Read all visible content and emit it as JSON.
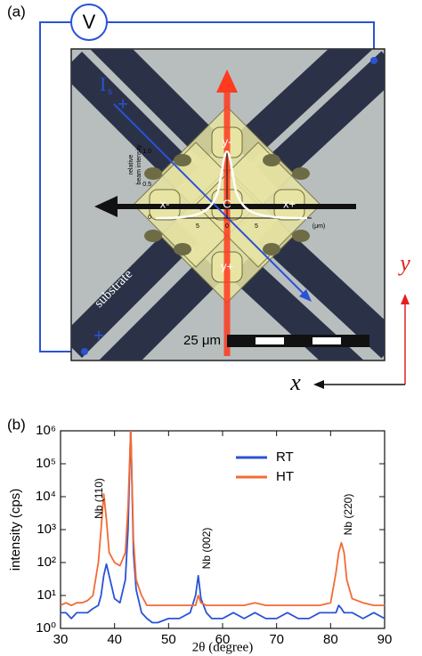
{
  "panel_a": {
    "label": "(a)",
    "voltmeter": "V",
    "current": "I",
    "current_sub": "s",
    "plus_top": "+",
    "plus_bottom": "+",
    "substrate": "substrate",
    "scale_bar": "25 μm",
    "axis_y": "y",
    "axis_x": "x",
    "pads": [
      "y-",
      "x-",
      "C",
      "x+",
      "y+"
    ],
    "inset": {
      "ylabel": [
        "relative",
        "beam intensity"
      ],
      "yticks": [
        "1.0",
        "0.5",
        "0"
      ],
      "xticks": [
        "5",
        "0",
        "5"
      ],
      "xunit": "(μm)"
    }
  },
  "panel_b": {
    "label": "(b)"
  },
  "chart_data": {
    "type": "line",
    "xlabel": "2θ (degree)",
    "ylabel": "intensity (cps)",
    "ylog": true,
    "x": [
      30,
      31,
      32,
      33,
      34,
      35,
      36,
      37,
      37.5,
      38,
      38.5,
      39,
      40,
      41,
      42,
      42.5,
      43,
      43.5,
      44,
      45,
      46,
      47,
      48,
      50,
      52,
      54,
      55,
      55.5,
      56,
      57,
      58,
      60,
      62,
      64,
      66,
      68,
      70,
      72,
      74,
      76,
      78,
      80,
      81,
      81.5,
      82,
      82.5,
      83,
      84,
      86,
      88,
      90
    ],
    "series": [
      {
        "name": "RT",
        "color": "#2a52d6",
        "values": [
          3,
          3,
          2,
          3,
          3,
          3,
          4,
          5,
          10,
          40,
          90,
          40,
          8,
          6,
          30,
          1000,
          1300000,
          200,
          15,
          3,
          2,
          1.5,
          1.5,
          2,
          2,
          3,
          10,
          40,
          8,
          3,
          2,
          2,
          3,
          2,
          3,
          2,
          2,
          3,
          2,
          2,
          3,
          3,
          3,
          5,
          4,
          3,
          3,
          3,
          2,
          3,
          2
        ]
      },
      {
        "name": "HT",
        "color": "#f26b35",
        "values": [
          5,
          6,
          5,
          6,
          6,
          7,
          10,
          100,
          1000,
          12000,
          2000,
          200,
          100,
          80,
          200,
          5000,
          1200000,
          500,
          30,
          10,
          5,
          5,
          5,
          5,
          5,
          5,
          5,
          10,
          6,
          5,
          5,
          5,
          5,
          5,
          6,
          5,
          5,
          5,
          5,
          5,
          5,
          6,
          50,
          200,
          400,
          200,
          30,
          8,
          6,
          5,
          5
        ]
      }
    ],
    "annotations": [
      "Nb (110)",
      "Nb (002)",
      "Nb (220)"
    ],
    "xlim": [
      30,
      90
    ],
    "xticks": [
      30,
      40,
      50,
      60,
      70,
      80,
      90
    ],
    "ylim": [
      1,
      1000000
    ],
    "yticks": [
      {
        "value": 1,
        "label": "10⁰"
      },
      {
        "value": 10,
        "label": "10¹"
      },
      {
        "value": 100,
        "label": "10²"
      },
      {
        "value": 1000,
        "label": "10³"
      },
      {
        "value": 10000,
        "label": "10⁴"
      },
      {
        "value": 100000,
        "label": "10⁵"
      },
      {
        "value": 1000000,
        "label": "10⁶"
      }
    ],
    "legend": "top"
  }
}
